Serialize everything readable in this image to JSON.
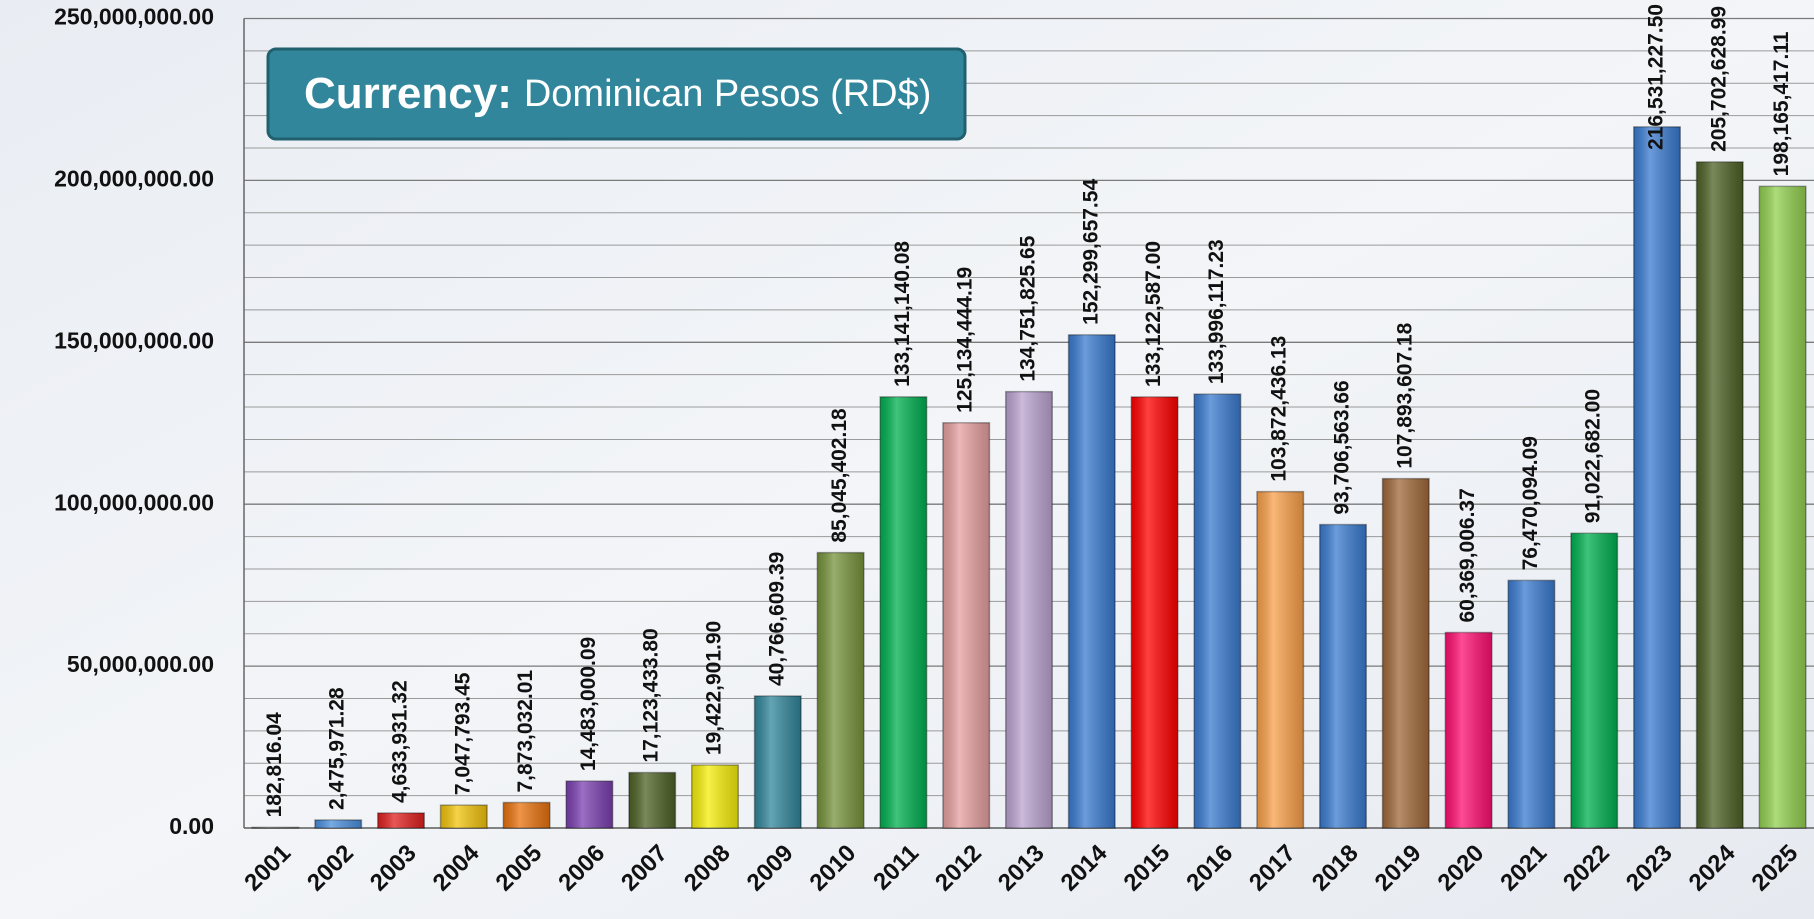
{
  "chart_data": {
    "type": "bar",
    "annotation": {
      "label": "Currency:",
      "text": "Dominican Pesos (RD$)"
    },
    "categories": [
      "2001",
      "2002",
      "2003",
      "2004",
      "2005",
      "2006",
      "2007",
      "2008",
      "2009",
      "2010",
      "2011",
      "2012",
      "2013",
      "2014",
      "2015",
      "2016",
      "2017",
      "2018",
      "2019",
      "2020",
      "2021",
      "2022",
      "2023",
      "2024",
      "2025"
    ],
    "values": [
      182816.04,
      2475971.28,
      4633931.32,
      7047793.45,
      7873032.01,
      14483000.09,
      17123433.8,
      19422901.9,
      40766609.39,
      85045402.18,
      133141140.08,
      125134444.19,
      134751825.65,
      152299657.54,
      133122587.0,
      133996117.23,
      103872436.13,
      93706563.66,
      107893607.18,
      60369006.37,
      76470094.09,
      91022682.0,
      216531227.5,
      205702628.99,
      198165417.11
    ],
    "value_labels": [
      "182,816.04",
      "2,475,971.28",
      "4,633,931.32",
      "7,047,793.45",
      "7,873,032.01",
      "14,483,000.09",
      "17,123,433.80",
      "19,422,901.90",
      "40,766,609.39",
      "85,045,402.18",
      "133,141,140.08",
      "125,134,444.19",
      "134,751,825.65",
      "152,299,657.54",
      "133,122,587.00",
      "133,996,117.23",
      "103,872,436.13",
      "93,706,563.66",
      "107,893,607.18",
      "60,369,006.37",
      "76,470,094.09",
      "91,022,682.00",
      "216,531,227.50",
      "205,702,628.99",
      "198,165,417.11"
    ],
    "colors": [
      "#7f7f7f",
      "#4a8fdc",
      "#e0201f",
      "#f2c40c",
      "#e8720e",
      "#7b3fb0",
      "#4e6125",
      "#f5ee0a",
      "#31869b",
      "#77933c",
      "#00b050",
      "#e6a0a0",
      "#bba3d0",
      "#3a7bd0",
      "#ff0000",
      "#3a7bd0",
      "#f9a04a",
      "#3a7bd0",
      "#a0693a",
      "#ff0f72",
      "#3a7bd0",
      "#00b050",
      "#3a7bd0",
      "#4e6125",
      "#92d050"
    ],
    "ylim": [
      0,
      250000000
    ],
    "yticks": [
      {
        "value": 0,
        "label": "0.00"
      },
      {
        "value": 50000000,
        "label": "50,000,000.00"
      },
      {
        "value": 100000000,
        "label": "100,000,000.00"
      },
      {
        "value": 150000000,
        "label": "150,000,000.00"
      },
      {
        "value": 200000000,
        "label": "200,000,000.00"
      },
      {
        "value": 250000000,
        "label": "250,000,000.00"
      }
    ],
    "ygrid": [
      10000000,
      20000000,
      30000000,
      40000000,
      60000000,
      70000000,
      80000000,
      90000000,
      110000000,
      120000000,
      130000000,
      140000000,
      160000000,
      170000000,
      180000000,
      190000000,
      210000000,
      220000000,
      230000000,
      240000000
    ],
    "grid": true
  }
}
